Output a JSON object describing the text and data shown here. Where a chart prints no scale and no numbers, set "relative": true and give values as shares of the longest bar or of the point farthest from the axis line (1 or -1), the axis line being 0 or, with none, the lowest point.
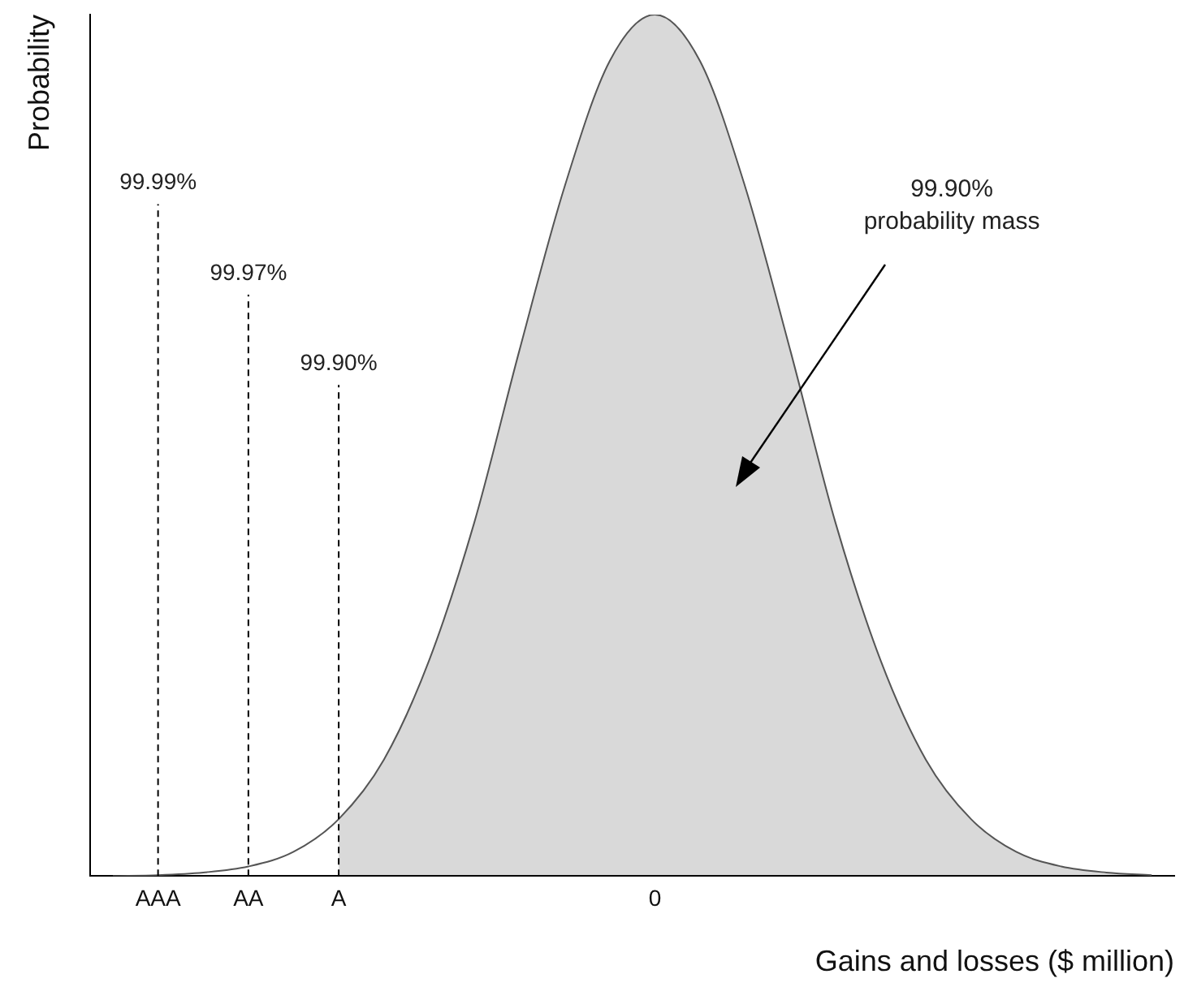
{
  "chart_data": {
    "type": "line",
    "relative": true,
    "xlabel": "Gains and losses ($ million)",
    "ylabel": "Probability",
    "tick_labels": "x",
    "categories": [
      null,
      "AAA",
      null,
      "AA",
      null,
      "A",
      null,
      null,
      null,
      null,
      null,
      null,
      "0",
      null,
      null,
      null,
      null,
      null,
      null,
      null,
      null,
      null,
      null,
      null
    ],
    "series": [
      {
        "type": "line",
        "color": "#555555",
        "values": [
          0,
          0.001,
          0.004,
          0.011,
          0.028,
          0.066,
          0.135,
          0.25,
          0.41,
          0.61,
          0.8,
          0.946,
          1,
          0.946,
          0.8,
          0.61,
          0.41,
          0.25,
          0.135,
          0.066,
          0.028,
          0.011,
          0.004,
          0.001
        ]
      },
      {
        "type": "area",
        "color": "#000000",
        "values": [
          null,
          null,
          null,
          null,
          null,
          0.066,
          0.135,
          0.25,
          0.41,
          0.61,
          0.8,
          0.946,
          1,
          0.946,
          0.8,
          0.61,
          0.41,
          0.25,
          0.135,
          0.066,
          0.028,
          0.011,
          0.004,
          0.001
        ]
      }
    ],
    "ref_lines": [
      {
        "axis": "x",
        "value": "AAA",
        "label": "99.99%",
        "color": "#000000",
        "line_style": "dashed"
      },
      {
        "axis": "x",
        "value": "AA",
        "label": "99.97%",
        "color": "#000000",
        "line_style": "dashed"
      },
      {
        "axis": "x",
        "value": "A",
        "label": "99.90%",
        "color": "#000000",
        "line_style": "dashed"
      }
    ],
    "annotations": [
      "99.90%\nprobability mass"
    ]
  }
}
